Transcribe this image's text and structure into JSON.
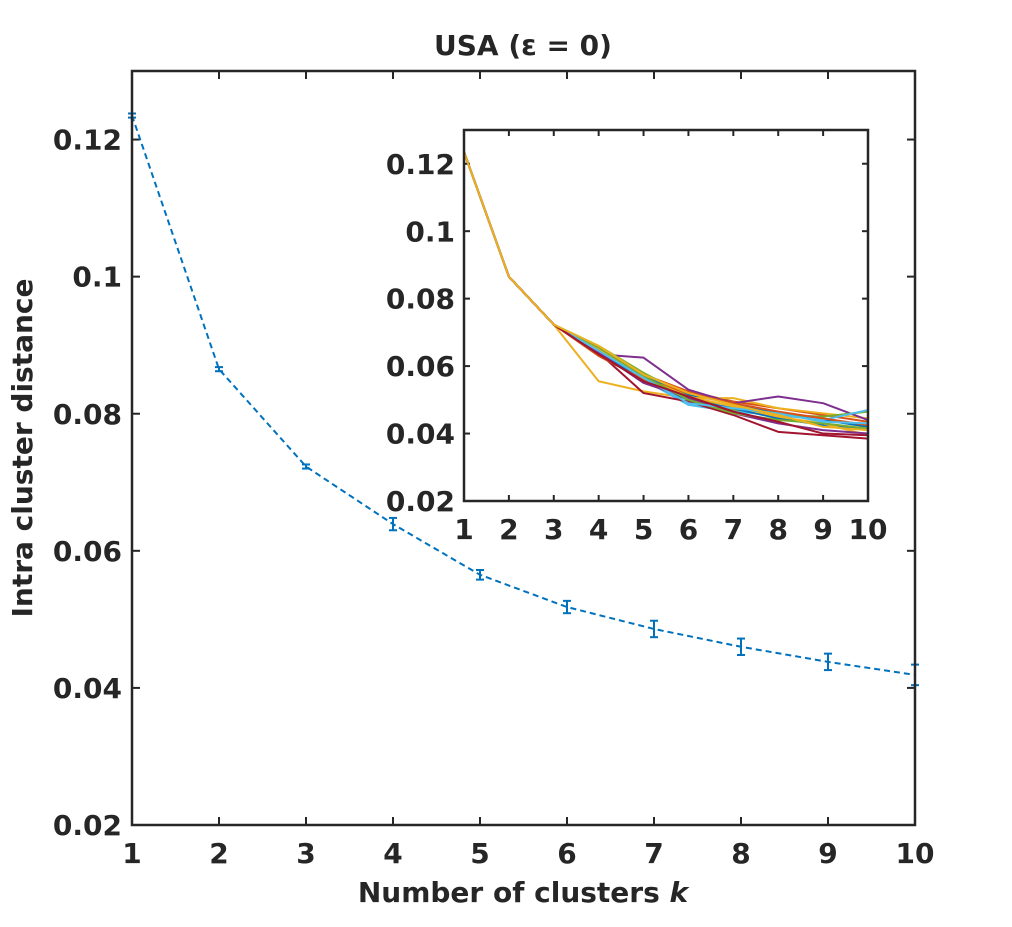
{
  "chart_data": [
    {
      "type": "line",
      "title": "USA (ε = 0)",
      "xlabel_prefix": "Number of clusters ",
      "xlabel_var": "k",
      "ylabel": "Intra cluster distance",
      "xlim": [
        1,
        10
      ],
      "ylim": [
        0.02,
        0.13
      ],
      "xticks": [
        1,
        2,
        3,
        4,
        5,
        6,
        7,
        8,
        9,
        10
      ],
      "xtick_labels": [
        "1",
        "2",
        "3",
        "4",
        "5",
        "6",
        "7",
        "8",
        "9",
        "10"
      ],
      "yticks": [
        0.02,
        0.04,
        0.06,
        0.08,
        0.1,
        0.12
      ],
      "ytick_labels": [
        "0.02",
        "0.04",
        "0.06",
        "0.08",
        "0.1",
        "0.12"
      ],
      "series": [
        {
          "name": "mean",
          "color": "#0072BD",
          "line_style": "dashed",
          "x": [
            1,
            2,
            3,
            4,
            5,
            6,
            7,
            8,
            9,
            10
          ],
          "y": [
            0.1235,
            0.0865,
            0.0723,
            0.0639,
            0.0565,
            0.0518,
            0.0486,
            0.046,
            0.0438,
            0.0419
          ],
          "error": [
            0.0003,
            0.0003,
            0.0003,
            0.0009,
            0.0007,
            0.0009,
            0.0012,
            0.0012,
            0.0012,
            0.0015
          ]
        }
      ]
    },
    {
      "type": "line",
      "title": "",
      "xlabel": "",
      "ylabel": "",
      "xlim": [
        1,
        10
      ],
      "ylim": [
        0.02,
        0.13
      ],
      "xticks": [
        1,
        2,
        3,
        4,
        5,
        6,
        7,
        8,
        9,
        10
      ],
      "xtick_labels": [
        "1",
        "2",
        "3",
        "4",
        "5",
        "6",
        "7",
        "8",
        "9",
        "10"
      ],
      "yticks": [
        0.02,
        0.04,
        0.06,
        0.08,
        0.1,
        0.12
      ],
      "ytick_labels": [
        "0.02",
        "0.04",
        "0.06",
        "0.08",
        "0.1",
        "0.12"
      ],
      "series": [
        {
          "name": "run 1",
          "color": "#0072BD",
          "x": [
            1,
            2,
            3,
            4,
            5,
            6,
            7,
            8,
            9,
            10
          ],
          "y": [
            0.1235,
            0.0865,
            0.0723,
            0.065,
            0.057,
            0.0515,
            0.049,
            0.046,
            0.044,
            0.042
          ]
        },
        {
          "name": "run 2",
          "color": "#D95319",
          "x": [
            1,
            2,
            3,
            4,
            5,
            6,
            7,
            8,
            9,
            10
          ],
          "y": [
            0.1235,
            0.0865,
            0.0723,
            0.064,
            0.0575,
            0.0525,
            0.0495,
            0.0475,
            0.0455,
            0.0435
          ]
        },
        {
          "name": "run 3",
          "color": "#EDB120",
          "x": [
            1,
            2,
            3,
            4,
            5,
            6,
            7,
            8,
            9,
            10
          ],
          "y": [
            0.1235,
            0.0865,
            0.0723,
            0.0555,
            0.0525,
            0.0505,
            0.0505,
            0.0475,
            0.046,
            0.0445
          ]
        },
        {
          "name": "run 4",
          "color": "#7E2F8E",
          "x": [
            1,
            2,
            3,
            4,
            5,
            6,
            7,
            8,
            9,
            10
          ],
          "y": [
            0.1235,
            0.0865,
            0.0723,
            0.0635,
            0.0625,
            0.053,
            0.049,
            0.051,
            0.049,
            0.044
          ]
        },
        {
          "name": "run 5",
          "color": "#77AC30",
          "x": [
            1,
            2,
            3,
            4,
            5,
            6,
            7,
            8,
            9,
            10
          ],
          "y": [
            0.1235,
            0.0865,
            0.0723,
            0.066,
            0.058,
            0.051,
            0.047,
            0.0455,
            0.045,
            0.0465
          ]
        },
        {
          "name": "run 6",
          "color": "#4DBEEE",
          "x": [
            1,
            2,
            3,
            4,
            5,
            6,
            7,
            8,
            9,
            10
          ],
          "y": [
            0.1235,
            0.0865,
            0.0723,
            0.065,
            0.056,
            0.0485,
            0.0465,
            0.0455,
            0.044,
            0.047
          ]
        },
        {
          "name": "run 7",
          "color": "#A2142F",
          "x": [
            1,
            2,
            3,
            4,
            5,
            6,
            7,
            8,
            9,
            10
          ],
          "y": [
            0.1235,
            0.0865,
            0.0723,
            0.064,
            0.052,
            0.0495,
            0.0455,
            0.0405,
            0.0395,
            0.0385
          ]
        },
        {
          "name": "run 8",
          "color": "#0072BD",
          "x": [
            1,
            2,
            3,
            4,
            5,
            6,
            7,
            8,
            9,
            10
          ],
          "y": [
            0.1235,
            0.0865,
            0.0723,
            0.0645,
            0.0555,
            0.05,
            0.0475,
            0.0445,
            0.0425,
            0.041
          ]
        },
        {
          "name": "run 9",
          "color": "#D95319",
          "x": [
            1,
            2,
            3,
            4,
            5,
            6,
            7,
            8,
            9,
            10
          ],
          "y": [
            0.1235,
            0.0865,
            0.0723,
            0.063,
            0.056,
            0.052,
            0.049,
            0.0465,
            0.0445,
            0.0425
          ]
        },
        {
          "name": "run 10",
          "color": "#EDB120",
          "x": [
            1,
            2,
            3,
            4,
            5,
            6,
            7,
            8,
            9,
            10
          ],
          "y": [
            0.1235,
            0.0865,
            0.0723,
            0.065,
            0.0565,
            0.051,
            0.048,
            0.045,
            0.043,
            0.0395
          ]
        },
        {
          "name": "run 11",
          "color": "#7E2F8E",
          "x": [
            1,
            2,
            3,
            4,
            5,
            6,
            7,
            8,
            9,
            10
          ],
          "y": [
            0.1235,
            0.0865,
            0.0723,
            0.064,
            0.055,
            0.0505,
            0.046,
            0.043,
            0.041,
            0.04
          ]
        },
        {
          "name": "run 12",
          "color": "#77AC30",
          "x": [
            1,
            2,
            3,
            4,
            5,
            6,
            7,
            8,
            9,
            10
          ],
          "y": [
            0.1235,
            0.0865,
            0.0723,
            0.0655,
            0.057,
            0.05,
            0.046,
            0.044,
            0.043,
            0.0415
          ]
        },
        {
          "name": "run 13",
          "color": "#4DBEEE",
          "x": [
            1,
            2,
            3,
            4,
            5,
            6,
            7,
            8,
            9,
            10
          ],
          "y": [
            0.1235,
            0.0865,
            0.0723,
            0.0645,
            0.0565,
            0.049,
            0.0475,
            0.046,
            0.0435,
            0.043
          ]
        },
        {
          "name": "run 14",
          "color": "#A2142F",
          "x": [
            1,
            2,
            3,
            4,
            5,
            6,
            7,
            8,
            9,
            10
          ],
          "y": [
            0.1235,
            0.0865,
            0.0723,
            0.0635,
            0.0555,
            0.051,
            0.0465,
            0.0435,
            0.04,
            0.0395
          ]
        },
        {
          "name": "run 15",
          "color": "#EDB120",
          "x": [
            1,
            2,
            3,
            4,
            5,
            6,
            7,
            8,
            9,
            10
          ],
          "y": [
            0.1235,
            0.0865,
            0.0723,
            0.066,
            0.0575,
            0.052,
            0.0485,
            0.0455,
            0.042,
            0.041
          ]
        }
      ]
    }
  ]
}
